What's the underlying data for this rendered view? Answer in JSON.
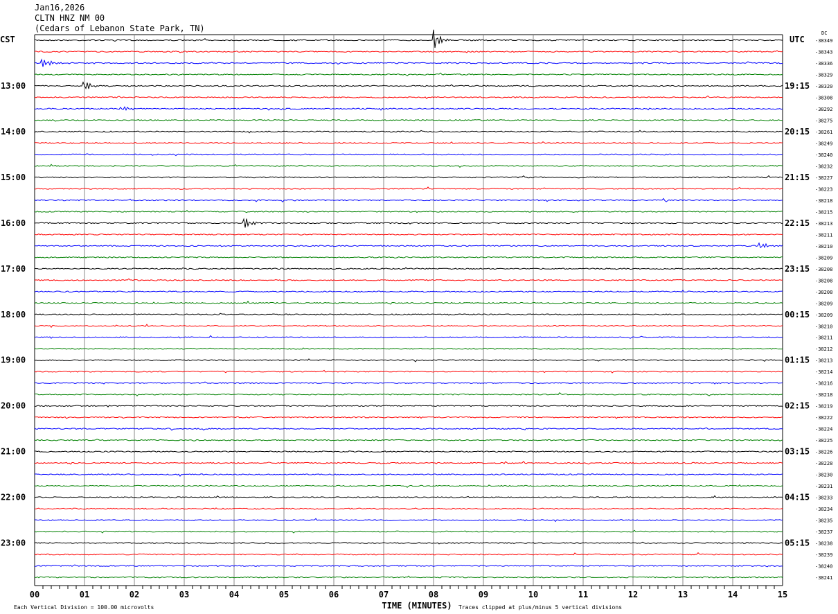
{
  "header": {
    "date": "Jan16,2026",
    "station": "CLTN HNZ NM 00",
    "location": "(Cedars of Lebanon State Park, TN)"
  },
  "chart_data": {
    "type": "line",
    "left_timezone": "CST",
    "right_timezone": "UTC",
    "dc_header": "DC",
    "xlabel": "TIME (MINUTES)",
    "xlim": [
      0,
      15
    ],
    "x_ticks": [
      "00",
      "01",
      "02",
      "03",
      "04",
      "05",
      "06",
      "07",
      "08",
      "09",
      "10",
      "11",
      "12",
      "13",
      "14",
      "15"
    ],
    "rows_per_hour": 4,
    "minutes_per_row": 15,
    "left_hour_labels": [
      "13:00",
      "14:00",
      "15:00",
      "16:00",
      "17:00",
      "18:00",
      "19:00",
      "20:00",
      "21:00",
      "22:00",
      "23:00"
    ],
    "right_hour_labels": [
      "19:15",
      "20:15",
      "21:15",
      "22:15",
      "23:15",
      "00:15",
      "01:15",
      "02:15",
      "03:15",
      "04:15",
      "05:15"
    ],
    "trace_colors": [
      "#000000",
      "#ff0000",
      "#0000ff",
      "#008000"
    ],
    "dc_offsets": [
      -38349,
      -38343,
      -38336,
      -38329,
      -38320,
      -38308,
      -38292,
      -38275,
      -38261,
      -38249,
      -38240,
      -38232,
      -38227,
      -38223,
      -38218,
      -38215,
      -38213,
      -38211,
      -38210,
      -38209,
      -38208,
      -38208,
      -38208,
      -38209,
      -38209,
      -38210,
      -38211,
      -38212,
      -38213,
      -38214,
      -38216,
      -38218,
      -38219,
      -38222,
      -38224,
      -38225,
      -38226,
      -38228,
      -38230,
      -38231,
      -38233,
      -38234,
      -38235,
      -38237,
      -38238,
      -38239,
      -38240,
      -38241
    ],
    "events": [
      {
        "row": 0,
        "minute": 8.02,
        "amplitude": 1.0
      },
      {
        "row": 2,
        "minute": 0.15,
        "amplitude": 0.35
      },
      {
        "row": 4,
        "minute": 1.0,
        "amplitude": 0.55
      },
      {
        "row": 6,
        "minute": 1.75,
        "amplitude": 0.2
      },
      {
        "row": 16,
        "minute": 4.2,
        "amplitude": 0.6
      },
      {
        "row": 18,
        "minute": 14.55,
        "amplitude": 0.25
      }
    ],
    "grid": true
  },
  "footer": {
    "scale_note": "Each Vertical Division =  100.00 microvolts",
    "clip_note": "Traces clipped at plus/minus 5 vertical divisions"
  }
}
